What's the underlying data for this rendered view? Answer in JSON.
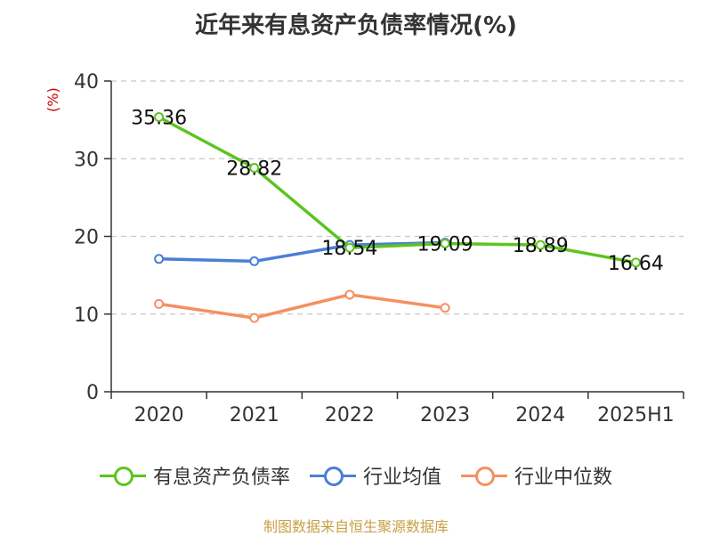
{
  "title": "近年来有息资产负债率情况(%)",
  "source": "制图数据来自恒生聚源数据库",
  "chart_data": {
    "type": "line",
    "unit_label": "(%)",
    "categories": [
      "2020",
      "2021",
      "2022",
      "2023",
      "2024",
      "2025H1"
    ],
    "ylim": [
      0,
      40
    ],
    "yticks": [
      0,
      10,
      20,
      30,
      40
    ],
    "grid": true,
    "legend_position": "bottom",
    "series": [
      {
        "name": "有息资产负债率",
        "color": "#5cc41f",
        "values": [
          35.36,
          28.82,
          18.54,
          19.09,
          18.89,
          16.64
        ],
        "labels": [
          "35.36",
          "28.82",
          "18.54",
          "19.09",
          "18.89",
          "16.64"
        ]
      },
      {
        "name": "行业均值",
        "color": "#4a7fd6",
        "values": [
          17.1,
          16.8,
          18.9,
          19.2,
          null,
          null
        ]
      },
      {
        "name": "行业中位数",
        "color": "#f59060",
        "values": [
          11.3,
          9.5,
          12.5,
          10.8,
          null,
          null
        ]
      }
    ]
  }
}
